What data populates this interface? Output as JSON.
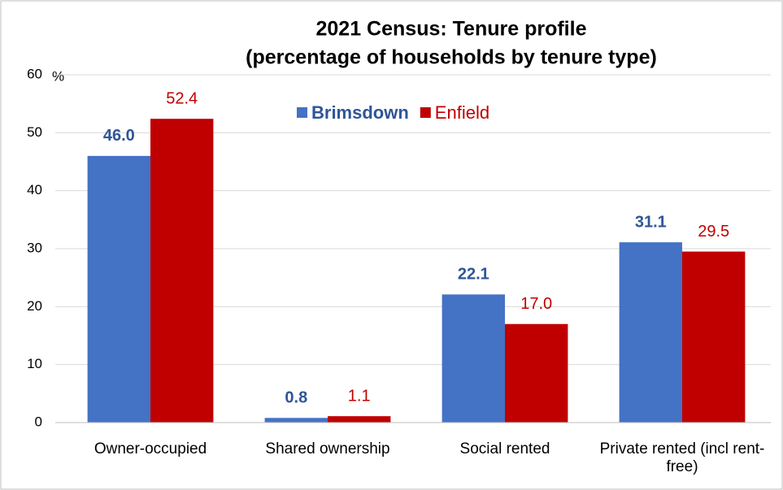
{
  "chart_data": {
    "type": "bar",
    "title": "2021 Census: Tenure profile",
    "subtitle": "(percentage of households by tenure type)",
    "y_label": "%",
    "categories": [
      "Owner-occupied",
      "Shared ownership",
      "Social rented",
      "Private rented (incl rent-free)"
    ],
    "series": [
      {
        "name": "Brimsdown",
        "color": "#4472c4",
        "label_color": "#2f5597",
        "values": [
          46.0,
          0.8,
          22.1,
          31.1
        ],
        "value_labels": [
          "46.0",
          "0.8",
          "22.1",
          "31.1"
        ]
      },
      {
        "name": "Enfield",
        "color": "#c00000",
        "label_color": "#c00000",
        "values": [
          52.4,
          1.1,
          17.0,
          29.5
        ],
        "value_labels": [
          "52.4",
          "1.1",
          "17.0",
          "29.5"
        ]
      }
    ],
    "ylim": [
      0,
      60
    ],
    "yticks": [
      0,
      10,
      20,
      30,
      40,
      50,
      60
    ],
    "grid": true,
    "legend": "top"
  }
}
